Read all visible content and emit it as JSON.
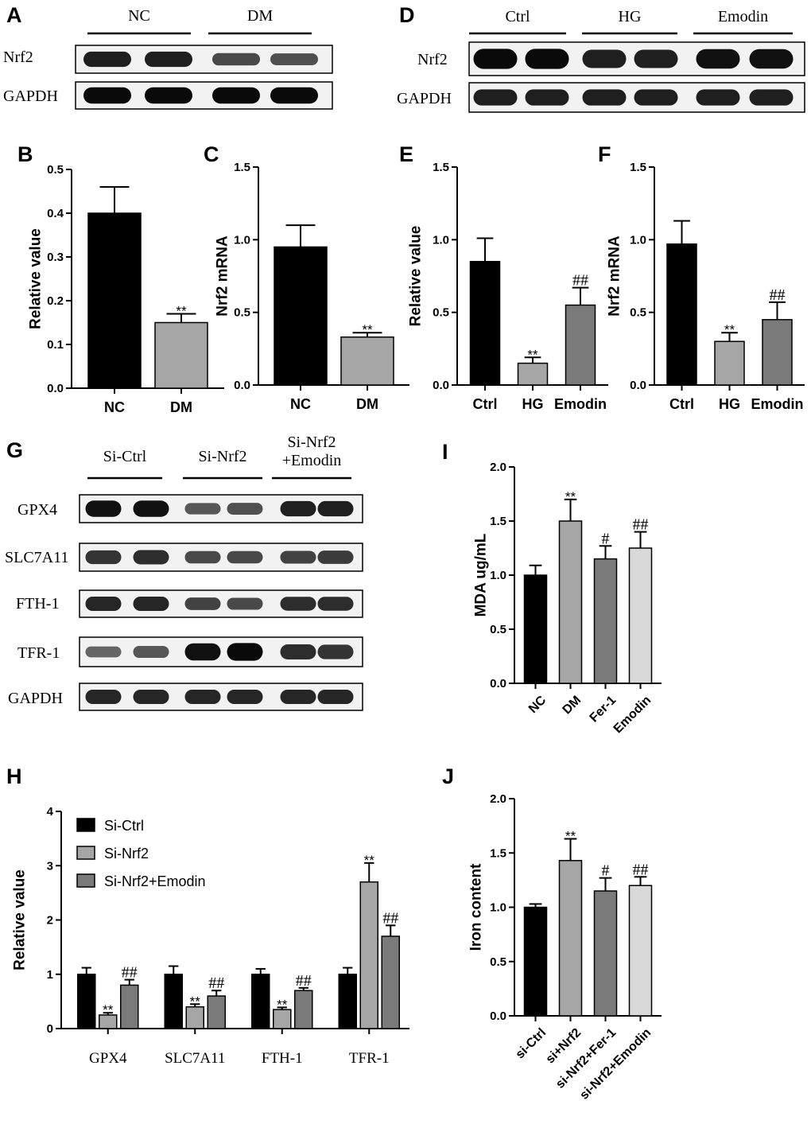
{
  "panels": {
    "A": {
      "letter": "A",
      "groups": [
        "NC",
        "DM"
      ],
      "rows": [
        "Nrf2",
        "GAPDH"
      ],
      "lanes": [
        {
          "Nrf2": 0.85,
          "GAPDH": 1.0
        },
        {
          "Nrf2": 0.85,
          "GAPDH": 1.0
        },
        {
          "Nrf2": 0.55,
          "GAPDH": 1.0
        },
        {
          "Nrf2": 0.5,
          "GAPDH": 1.0
        }
      ]
    },
    "D": {
      "letter": "D",
      "groups": [
        "Ctrl",
        "HG",
        "Emodin"
      ],
      "rows": [
        "Nrf2",
        "GAPDH"
      ],
      "lanes": [
        {
          "Nrf2": 1.0,
          "GAPDH": 0.85
        },
        {
          "Nrf2": 1.0,
          "GAPDH": 0.85
        },
        {
          "Nrf2": 0.85,
          "GAPDH": 0.85
        },
        {
          "Nrf2": 0.85,
          "GAPDH": 0.85
        },
        {
          "Nrf2": 0.95,
          "GAPDH": 0.85
        },
        {
          "Nrf2": 0.95,
          "GAPDH": 0.85
        }
      ]
    },
    "G": {
      "letter": "G",
      "groups": [
        "Si-Ctrl",
        "Si-Nrf2",
        "Si-Nrf2\n+Emodin"
      ],
      "rows": [
        "GPX4",
        "SLC7A11",
        "FTH-1",
        "TFR-1",
        "GAPDH"
      ],
      "lanes": [
        {
          "GPX4": 0.95,
          "SLC7A11": 0.7,
          "FTH-1": 0.8,
          "TFR-1": 0.35,
          "GAPDH": 0.8
        },
        {
          "GPX4": 0.95,
          "SLC7A11": 0.75,
          "FTH-1": 0.8,
          "TFR-1": 0.45,
          "GAPDH": 0.8
        },
        {
          "GPX4": 0.45,
          "SLC7A11": 0.55,
          "FTH-1": 0.6,
          "TFR-1": 0.95,
          "GAPDH": 0.8
        },
        {
          "GPX4": 0.5,
          "SLC7A11": 0.55,
          "FTH-1": 0.55,
          "TFR-1": 1.0,
          "GAPDH": 0.8
        },
        {
          "GPX4": 0.85,
          "SLC7A11": 0.6,
          "FTH-1": 0.75,
          "TFR-1": 0.75,
          "GAPDH": 0.8
        },
        {
          "GPX4": 0.85,
          "SLC7A11": 0.65,
          "FTH-1": 0.75,
          "TFR-1": 0.7,
          "GAPDH": 0.8
        }
      ]
    }
  },
  "chart_data": [
    {
      "id": "B",
      "letter": "B",
      "type": "bar",
      "categories": [
        "NC",
        "DM"
      ],
      "values": [
        0.4,
        0.15
      ],
      "errors": [
        0.06,
        0.02
      ],
      "annotations": [
        "",
        "**"
      ],
      "colors": [
        "#000000",
        "#a6a6a6"
      ],
      "xlabel": "",
      "ylabel": "Relative value",
      "ylim": [
        0,
        0.5
      ],
      "yticks": [
        "0.0",
        "0.1",
        "0.2",
        "0.3",
        "0.4",
        "0.5"
      ]
    },
    {
      "id": "C",
      "letter": "C",
      "type": "bar",
      "categories": [
        "NC",
        "DM"
      ],
      "values": [
        0.95,
        0.33
      ],
      "errors": [
        0.15,
        0.03
      ],
      "annotations": [
        "",
        "**"
      ],
      "colors": [
        "#000000",
        "#a6a6a6"
      ],
      "xlabel": "",
      "ylabel": "Nrf2 mRNA",
      "ylim": [
        0,
        1.5
      ],
      "yticks": [
        "0.0",
        "0.5",
        "1.0",
        "1.5"
      ]
    },
    {
      "id": "E",
      "letter": "E",
      "type": "bar",
      "categories": [
        "Ctrl",
        "HG",
        "Emodin"
      ],
      "values": [
        0.85,
        0.15,
        0.55
      ],
      "errors": [
        0.16,
        0.04,
        0.12
      ],
      "annotations": [
        "",
        "**",
        "##"
      ],
      "colors": [
        "#000000",
        "#a6a6a6",
        "#7a7a7a"
      ],
      "xlabel": "",
      "ylabel": "Relative value",
      "ylim": [
        0,
        1.5
      ],
      "yticks": [
        "0.0",
        "0.5",
        "1.0",
        "1.5"
      ]
    },
    {
      "id": "F",
      "letter": "F",
      "type": "bar",
      "categories": [
        "Ctrl",
        "HG",
        "Emodin"
      ],
      "values": [
        0.97,
        0.3,
        0.45
      ],
      "errors": [
        0.16,
        0.06,
        0.12
      ],
      "annotations": [
        "",
        "**",
        "##"
      ],
      "colors": [
        "#000000",
        "#a6a6a6",
        "#7a7a7a"
      ],
      "xlabel": "",
      "ylabel": "Nrf2 mRNA",
      "ylim": [
        0,
        1.5
      ],
      "yticks": [
        "0.0",
        "0.5",
        "1.0",
        "1.5"
      ]
    },
    {
      "id": "I",
      "letter": "I",
      "type": "bar",
      "categories": [
        "NC",
        "DM",
        "Fer-1",
        "Emodin"
      ],
      "values": [
        1.0,
        1.5,
        1.15,
        1.25
      ],
      "errors": [
        0.09,
        0.2,
        0.12,
        0.15
      ],
      "annotations": [
        "",
        "**",
        "#",
        "##"
      ],
      "colors": [
        "#000000",
        "#a6a6a6",
        "#7a7a7a",
        "#d9d9d9"
      ],
      "xlabel": "",
      "ylabel": "MDA ug/mL",
      "ylim": [
        0,
        2.0
      ],
      "yticks": [
        "0.0",
        "0.5",
        "1.0",
        "1.5",
        "2.0"
      ]
    },
    {
      "id": "J",
      "letter": "J",
      "type": "bar",
      "categories": [
        "si-Ctrl",
        "si+Nrf2",
        "si-Nrf2+Fer-1",
        "si-Nrf2+Emodin"
      ],
      "values": [
        1.0,
        1.43,
        1.15,
        1.2
      ],
      "errors": [
        0.03,
        0.2,
        0.12,
        0.08
      ],
      "annotations": [
        "",
        "**",
        "#",
        "##"
      ],
      "colors": [
        "#000000",
        "#a6a6a6",
        "#7a7a7a",
        "#d9d9d9"
      ],
      "xlabel": "",
      "ylabel": "Iron content",
      "ylim": [
        0,
        2.0
      ],
      "yticks": [
        "0.0",
        "0.5",
        "1.0",
        "1.5",
        "2.0"
      ]
    },
    {
      "id": "H",
      "letter": "H",
      "type": "bar",
      "categories": [
        "GPX4",
        "SLC7A11",
        "FTH-1",
        "TFR-1"
      ],
      "series": [
        {
          "name": "Si-Ctrl",
          "values": [
            1.0,
            1.0,
            1.0,
            1.0
          ],
          "errors": [
            0.12,
            0.15,
            0.1,
            0.12
          ],
          "annotations": [
            "",
            "",
            "",
            ""
          ],
          "color": "#000000"
        },
        {
          "name": "Si-Nrf2",
          "values": [
            0.25,
            0.4,
            0.35,
            2.7
          ],
          "errors": [
            0.04,
            0.05,
            0.04,
            0.35
          ],
          "annotations": [
            "**",
            "**",
            "**",
            "**"
          ],
          "color": "#a6a6a6"
        },
        {
          "name": "Si-Nrf2+Emodin",
          "values": [
            0.8,
            0.6,
            0.7,
            1.7
          ],
          "errors": [
            0.1,
            0.1,
            0.05,
            0.2
          ],
          "annotations": [
            "##",
            "##",
            "##",
            "##"
          ],
          "color": "#7a7a7a"
        }
      ],
      "xlabel": "",
      "ylabel": "Relative value",
      "ylim": [
        0,
        4
      ],
      "yticks": [
        "0",
        "1",
        "2",
        "3",
        "4"
      ],
      "legend": "top-left"
    }
  ]
}
